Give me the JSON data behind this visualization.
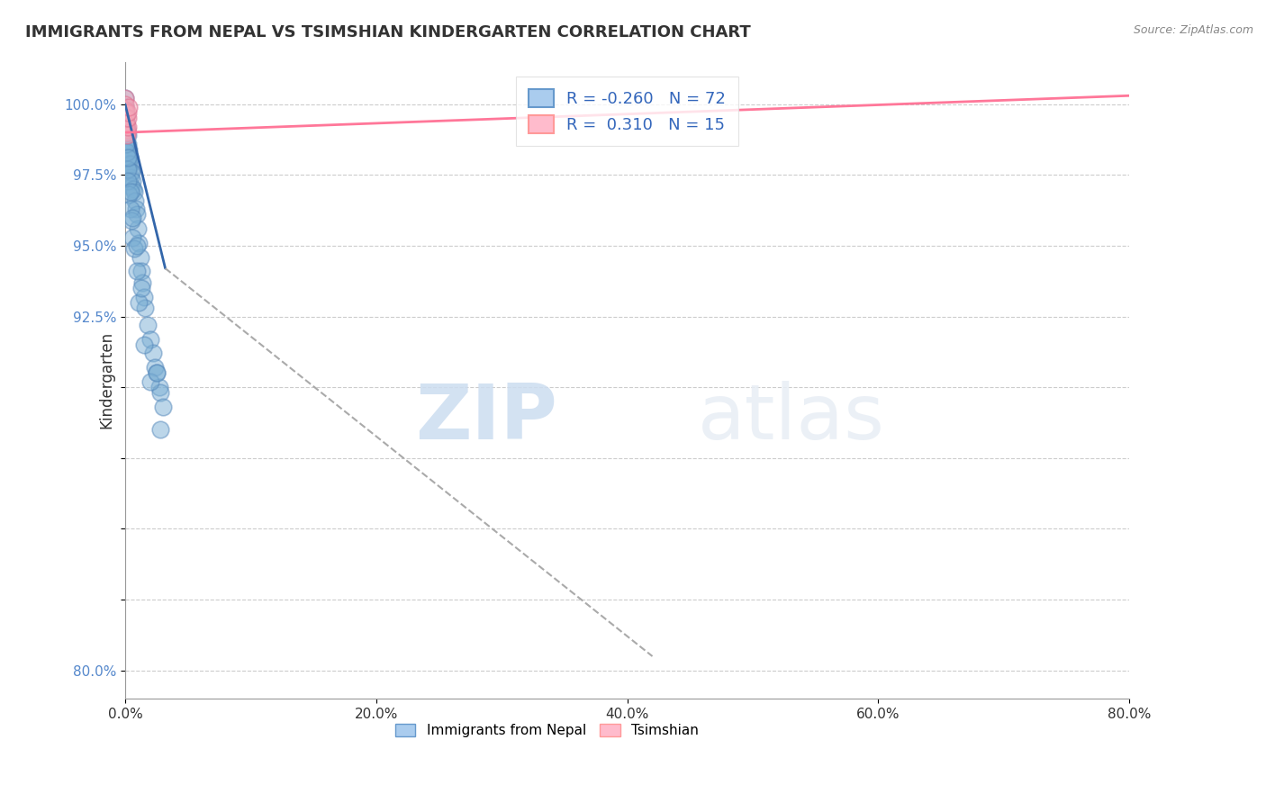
{
  "title": "IMMIGRANTS FROM NEPAL VS TSIMSHIAN KINDERGARTEN CORRELATION CHART",
  "source_text": "Source: ZipAtlas.com",
  "xlabel_vals": [
    0.0,
    20.0,
    40.0,
    60.0,
    80.0
  ],
  "ylabel_vals": [
    80.0,
    82.5,
    85.0,
    87.5,
    90.0,
    92.5,
    95.0,
    97.5,
    100.0
  ],
  "ylabel_shown": [
    92.5,
    95.0,
    97.5,
    100.0
  ],
  "xlim": [
    0.0,
    80.0
  ],
  "ylim": [
    79.0,
    101.5
  ],
  "xlabel": "Immigrants from Nepal",
  "ylabel": "Kindergarten",
  "nepal_color": "#7BAFD4",
  "nepal_edge_color": "#5588BB",
  "tsimshian_color": "#F4A7B9",
  "tsimshian_edge_color": "#E07090",
  "nepal_R": -0.26,
  "nepal_N": 72,
  "tsimshian_R": 0.31,
  "tsimshian_N": 15,
  "nepal_line_x0": 0.0,
  "nepal_line_y0": 100.0,
  "nepal_line_x1": 3.2,
  "nepal_line_y1": 94.2,
  "nepal_dash_x0": 3.2,
  "nepal_dash_y0": 94.2,
  "nepal_dash_x1": 42.0,
  "nepal_dash_y1": 80.5,
  "tsimshian_line_x0": 0.0,
  "tsimshian_line_y0": 99.0,
  "tsimshian_line_x1": 80.0,
  "tsimshian_line_y1": 100.3,
  "watermark_zip": "ZIP",
  "watermark_atlas": "atlas",
  "background_color": "#ffffff",
  "grid_color": "#CCCCCC",
  "nepal_points_x": [
    0.0,
    0.0,
    0.0,
    0.0,
    0.0,
    0.0,
    0.0,
    0.05,
    0.05,
    0.1,
    0.1,
    0.1,
    0.15,
    0.15,
    0.2,
    0.2,
    0.2,
    0.25,
    0.25,
    0.3,
    0.3,
    0.35,
    0.4,
    0.4,
    0.45,
    0.5,
    0.5,
    0.6,
    0.65,
    0.7,
    0.8,
    0.85,
    0.9,
    1.0,
    1.1,
    1.2,
    1.3,
    1.4,
    1.5,
    1.6,
    1.8,
    2.0,
    2.2,
    2.4,
    2.5,
    2.7,
    2.8,
    3.0,
    0.0,
    0.05,
    0.1,
    0.15,
    0.2,
    0.25,
    0.3,
    0.4,
    0.5,
    0.6,
    0.7,
    0.9,
    1.1,
    1.5,
    2.0,
    2.8,
    0.0,
    0.1,
    0.2,
    0.4,
    0.6,
    0.9,
    1.3,
    2.5
  ],
  "nepal_points_y": [
    100.2,
    99.9,
    99.7,
    99.5,
    99.3,
    99.1,
    98.9,
    99.6,
    99.1,
    99.3,
    98.9,
    98.5,
    99.1,
    98.6,
    98.9,
    98.4,
    97.9,
    98.6,
    98.1,
    98.4,
    97.9,
    98.1,
    97.9,
    97.4,
    97.6,
    97.6,
    97.1,
    97.3,
    97.0,
    96.9,
    96.6,
    96.3,
    96.1,
    95.6,
    95.1,
    94.6,
    94.1,
    93.7,
    93.2,
    92.8,
    92.2,
    91.7,
    91.2,
    90.7,
    90.5,
    90.0,
    89.8,
    89.3,
    99.8,
    99.4,
    98.7,
    98.3,
    97.7,
    97.3,
    96.8,
    96.3,
    95.9,
    95.3,
    94.9,
    94.1,
    93.0,
    91.5,
    90.2,
    88.5,
    99.9,
    98.6,
    98.1,
    96.9,
    96.0,
    95.0,
    93.5,
    90.5
  ],
  "tsimshian_points_x": [
    0.0,
    0.0,
    0.0,
    0.0,
    0.0,
    0.05,
    0.07,
    0.1,
    0.12,
    0.15,
    0.18,
    0.2,
    0.22,
    0.25,
    0.3
  ],
  "tsimshian_points_y": [
    100.2,
    100.0,
    99.8,
    99.5,
    99.2,
    99.7,
    99.5,
    99.3,
    99.1,
    99.0,
    98.9,
    99.2,
    99.5,
    99.7,
    99.9
  ]
}
